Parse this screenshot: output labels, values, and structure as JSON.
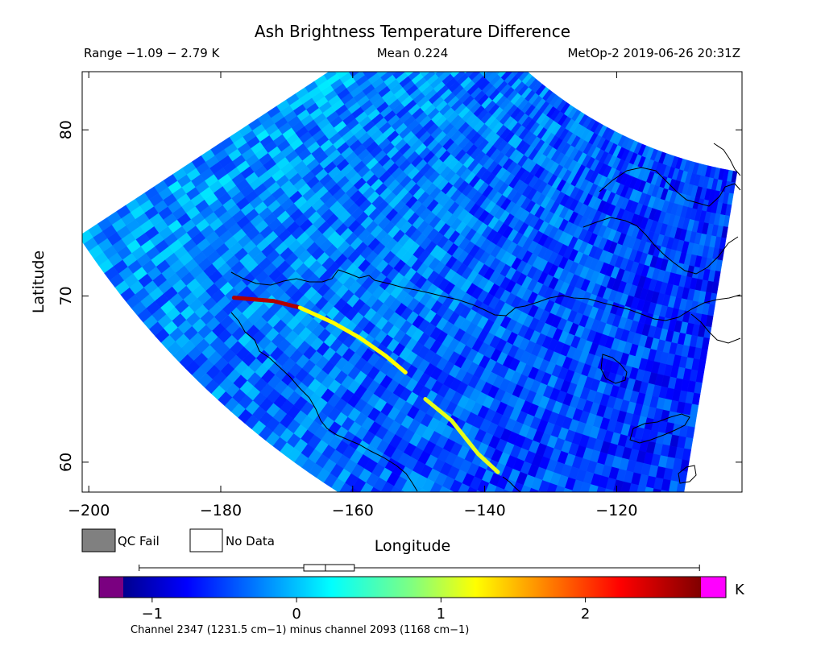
{
  "chart_data": {
    "type": "heatmap",
    "title": "Ash Brightness Temperature Difference",
    "subtitle_left": "Range −1.09 − 2.79 K",
    "subtitle_center": "Mean 0.224",
    "subtitle_right": "MetOp-2 2019-06-26 20:31Z",
    "xlabel": "Longitude",
    "ylabel": "Latitude",
    "xlim": [
      -201,
      -101
    ],
    "ylim": [
      58.2,
      83.5
    ],
    "x_ticks": [
      -200,
      -180,
      -160,
      -140,
      -120
    ],
    "x_tick_labels": [
      "−200",
      "−180",
      "−160",
      "−140",
      "−120"
    ],
    "y_ticks": [
      60,
      70,
      80
    ],
    "y_tick_labels": [
      "60",
      "70",
      "80"
    ],
    "range": [
      -1.09,
      2.79
    ],
    "mean": 0.224,
    "units": "K",
    "legend": [
      {
        "label": "QC Fail",
        "color": "#808080"
      },
      {
        "label": "No Data",
        "color": "#ffffff"
      }
    ],
    "colorbar": {
      "min": -1.2,
      "max": 2.8,
      "ticks": [
        -1,
        0,
        1,
        2
      ],
      "tick_labels": [
        "−1",
        "0",
        "1",
        "2"
      ],
      "units_label": "K",
      "caption": "Channel 2347 (1231.5 cm−1) minus channel 2093 (1168 cm−1)",
      "under_color": "#7a0080",
      "over_color": "#ff00ff",
      "box_q1": 0.05,
      "box_median": 0.2,
      "box_q3": 0.4,
      "whisker_low": -1.09,
      "whisker_high": 2.79
    },
    "swath_features": [
      {
        "name": "ash band segment 1",
        "points": [
          [
            -178,
            69.9
          ],
          [
            -172,
            69.7
          ],
          [
            -168,
            69.3
          ]
        ],
        "value": 2.6
      },
      {
        "name": "ash band segment 2",
        "points": [
          [
            -168,
            69.3
          ],
          [
            -163,
            68.4
          ],
          [
            -159,
            67.5
          ],
          [
            -155,
            66.4
          ],
          [
            -152,
            65.4
          ]
        ],
        "value": 1.3
      },
      {
        "name": "ash band segment 3",
        "points": [
          [
            -149,
            63.8
          ],
          [
            -145,
            62.5
          ],
          [
            -141,
            60.5
          ],
          [
            -138,
            59.4
          ]
        ],
        "value": 1.2
      }
    ]
  }
}
